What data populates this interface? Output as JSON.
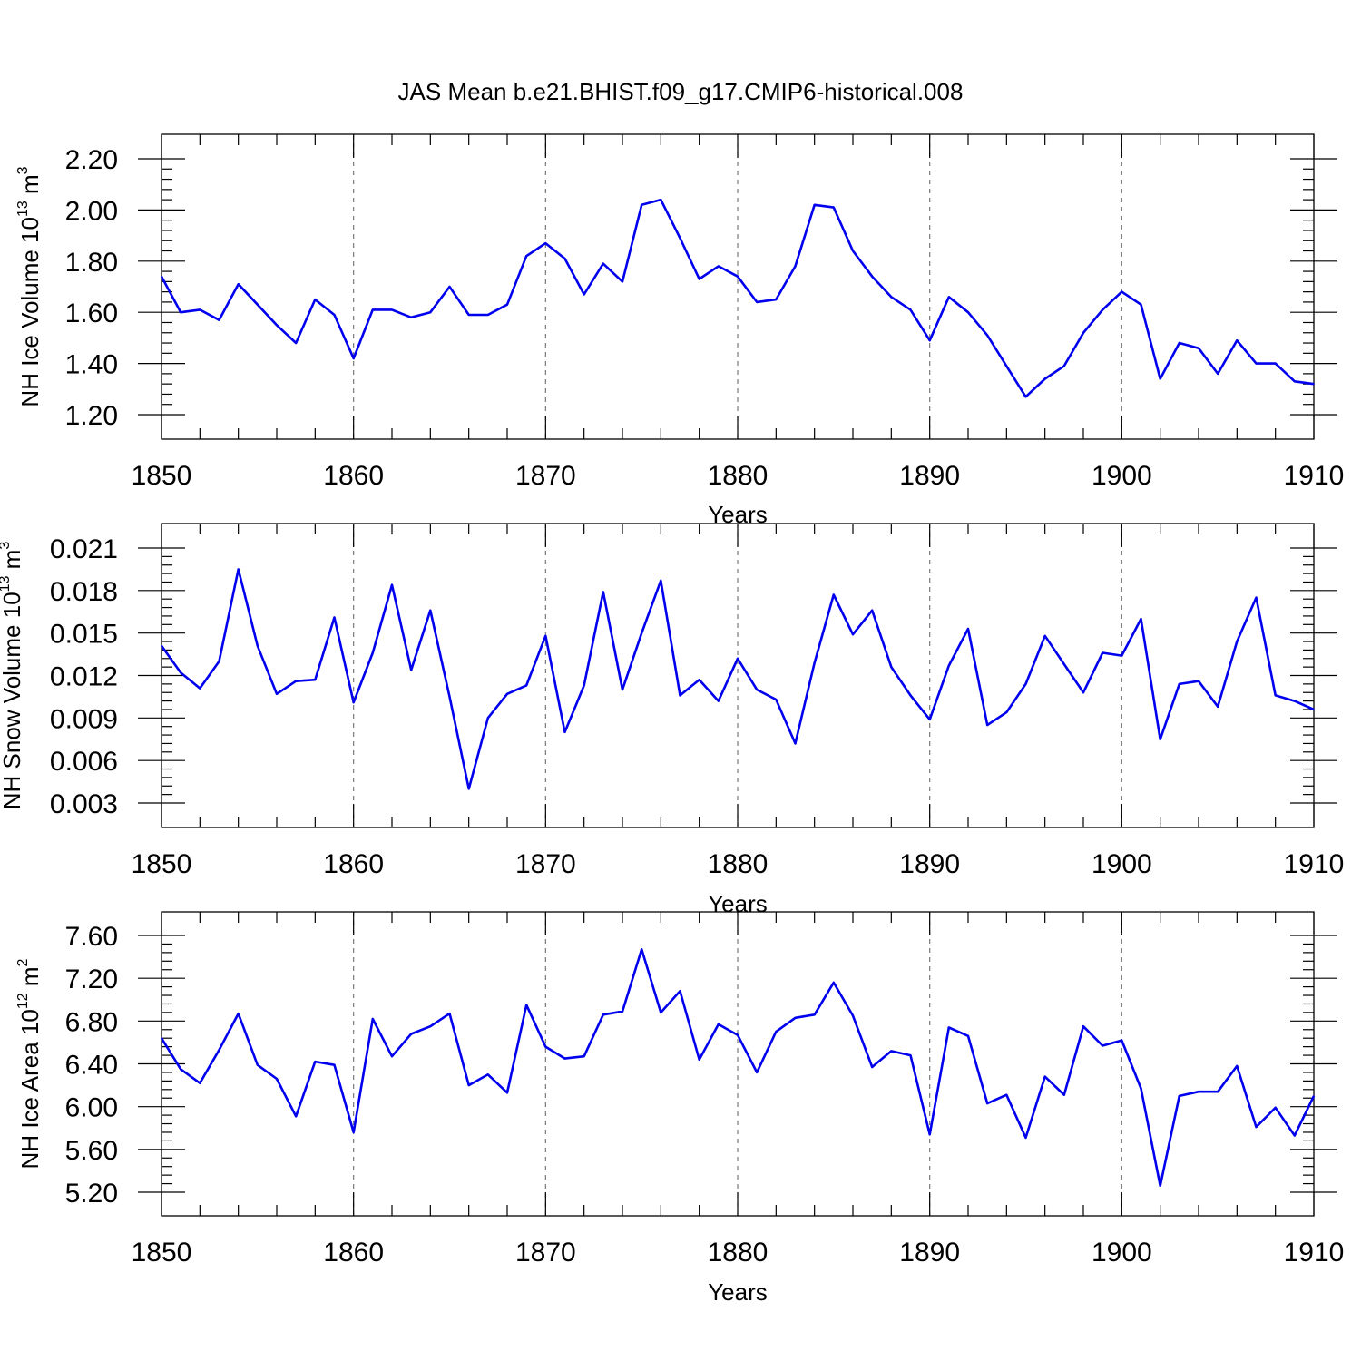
{
  "chart_data": [
    {
      "type": "line",
      "title": "JAS Mean b.e21.BHIST.f09_g17.CMIP6-historical.008",
      "xlabel": "Years",
      "ylabel": {
        "text": "NH Ice Volume 10",
        "exponent": "13",
        "unit": " m",
        "unit_exponent": "3"
      },
      "xlim": [
        1850,
        1910
      ],
      "ylim": [
        1.2,
        2.2
      ],
      "x_ticks": [
        1850,
        1860,
        1870,
        1880,
        1890,
        1900,
        1910
      ],
      "y_ticks": [
        "1.20",
        "1.40",
        "1.60",
        "1.80",
        "2.00",
        "2.20"
      ],
      "y_tick_values": [
        1.2,
        1.4,
        1.6,
        1.8,
        2.0,
        2.2
      ],
      "vertical_gridlines": [
        1860,
        1870,
        1880,
        1890,
        1900
      ],
      "line_color": "#0000ee",
      "x": [
        1850,
        1851,
        1852,
        1853,
        1854,
        1855,
        1856,
        1857,
        1858,
        1859,
        1860,
        1861,
        1862,
        1863,
        1864,
        1865,
        1866,
        1867,
        1868,
        1869,
        1870,
        1871,
        1872,
        1873,
        1874,
        1875,
        1876,
        1877,
        1878,
        1879,
        1880,
        1881,
        1882,
        1883,
        1884,
        1885,
        1886,
        1887,
        1888,
        1889,
        1890,
        1891,
        1892,
        1893,
        1894,
        1895,
        1896,
        1897,
        1898,
        1899,
        1900,
        1901,
        1902,
        1903,
        1904,
        1905,
        1906,
        1907,
        1908,
        1909,
        1910
      ],
      "values": [
        1.74,
        1.6,
        1.61,
        1.57,
        1.71,
        1.63,
        1.55,
        1.48,
        1.65,
        1.59,
        1.42,
        1.61,
        1.61,
        1.58,
        1.6,
        1.7,
        1.59,
        1.59,
        1.63,
        1.82,
        1.87,
        1.81,
        1.67,
        1.79,
        1.72,
        2.02,
        2.04,
        1.89,
        1.73,
        1.78,
        1.74,
        1.64,
        1.65,
        1.78,
        2.02,
        2.01,
        1.84,
        1.74,
        1.66,
        1.61,
        1.49,
        1.66,
        1.6,
        1.51,
        1.39,
        1.27,
        1.34,
        1.39,
        1.52,
        1.61,
        1.68,
        1.63,
        1.34,
        1.48,
        1.46,
        1.36,
        1.49,
        1.4,
        1.4,
        1.33,
        1.32
      ]
    },
    {
      "type": "line",
      "xlabel": "Years",
      "ylabel": {
        "text": "NH Snow Volume 10",
        "exponent": "13",
        "unit": " m",
        "unit_exponent": "3"
      },
      "xlim": [
        1850,
        1910
      ],
      "ylim": [
        0.003,
        0.021
      ],
      "x_ticks": [
        1850,
        1860,
        1870,
        1880,
        1890,
        1900,
        1910
      ],
      "y_ticks": [
        "0.003",
        "0.006",
        "0.009",
        "0.012",
        "0.015",
        "0.018",
        "0.021"
      ],
      "y_tick_values": [
        0.003,
        0.006,
        0.009,
        0.012,
        0.015,
        0.018,
        0.021
      ],
      "vertical_gridlines": [
        1860,
        1870,
        1880,
        1890,
        1900
      ],
      "line_color": "#0000ee",
      "x": [
        1850,
        1851,
        1852,
        1853,
        1854,
        1855,
        1856,
        1857,
        1858,
        1859,
        1860,
        1861,
        1862,
        1863,
        1864,
        1865,
        1866,
        1867,
        1868,
        1869,
        1870,
        1871,
        1872,
        1873,
        1874,
        1875,
        1876,
        1877,
        1878,
        1879,
        1880,
        1881,
        1882,
        1883,
        1884,
        1885,
        1886,
        1887,
        1888,
        1889,
        1890,
        1891,
        1892,
        1893,
        1894,
        1895,
        1896,
        1897,
        1898,
        1899,
        1900,
        1901,
        1902,
        1903,
        1904,
        1905,
        1906,
        1907,
        1908,
        1909,
        1910
      ],
      "values": [
        0.0141,
        0.0122,
        0.0111,
        0.013,
        0.0195,
        0.0141,
        0.0107,
        0.0116,
        0.0117,
        0.0161,
        0.0101,
        0.0136,
        0.0184,
        0.0124,
        0.0166,
        0.0105,
        0.004,
        0.009,
        0.0107,
        0.0113,
        0.0148,
        0.008,
        0.0113,
        0.0179,
        0.011,
        0.015,
        0.0187,
        0.0106,
        0.0117,
        0.0102,
        0.0132,
        0.011,
        0.0103,
        0.0072,
        0.0129,
        0.0177,
        0.0149,
        0.0166,
        0.0126,
        0.0106,
        0.0089,
        0.0127,
        0.0153,
        0.0085,
        0.0094,
        0.0114,
        0.0148,
        0.0128,
        0.0108,
        0.0136,
        0.0134,
        0.016,
        0.0075,
        0.0114,
        0.0116,
        0.0098,
        0.0144,
        0.0175,
        0.0106,
        0.0102,
        0.0096
      ]
    },
    {
      "type": "line",
      "xlabel": "Years",
      "ylabel": {
        "text": "NH Ice Area 10",
        "exponent": "12",
        "unit": " m",
        "unit_exponent": "2"
      },
      "xlim": [
        1850,
        1910
      ],
      "ylim": [
        5.2,
        7.6
      ],
      "x_ticks": [
        1850,
        1860,
        1870,
        1880,
        1890,
        1900,
        1910
      ],
      "y_ticks": [
        "5.20",
        "5.60",
        "6.00",
        "6.40",
        "6.80",
        "7.20",
        "7.60"
      ],
      "y_tick_values": [
        5.2,
        5.6,
        6.0,
        6.4,
        6.8,
        7.2,
        7.6
      ],
      "vertical_gridlines": [
        1860,
        1870,
        1880,
        1890,
        1900
      ],
      "line_color": "#0000ee",
      "x": [
        1850,
        1851,
        1852,
        1853,
        1854,
        1855,
        1856,
        1857,
        1858,
        1859,
        1860,
        1861,
        1862,
        1863,
        1864,
        1865,
        1866,
        1867,
        1868,
        1869,
        1870,
        1871,
        1872,
        1873,
        1874,
        1875,
        1876,
        1877,
        1878,
        1879,
        1880,
        1881,
        1882,
        1883,
        1884,
        1885,
        1886,
        1887,
        1888,
        1889,
        1890,
        1891,
        1892,
        1893,
        1894,
        1895,
        1896,
        1897,
        1898,
        1899,
        1900,
        1901,
        1902,
        1903,
        1904,
        1905,
        1906,
        1907,
        1908,
        1909,
        1910
      ],
      "values": [
        6.64,
        6.35,
        6.22,
        6.53,
        6.87,
        6.39,
        6.26,
        5.91,
        6.42,
        6.39,
        5.76,
        6.82,
        6.47,
        6.68,
        6.75,
        6.87,
        6.2,
        6.3,
        6.13,
        6.95,
        6.56,
        6.45,
        6.47,
        6.86,
        6.89,
        7.47,
        6.88,
        7.08,
        6.44,
        6.77,
        6.67,
        6.32,
        6.7,
        6.83,
        6.86,
        7.16,
        6.85,
        6.37,
        6.52,
        6.48,
        5.74,
        6.74,
        6.66,
        6.03,
        6.11,
        5.71,
        6.28,
        6.11,
        6.75,
        6.57,
        6.62,
        6.17,
        5.26,
        6.1,
        6.14,
        6.14,
        6.38,
        5.81,
        5.99,
        5.73,
        6.1
      ]
    }
  ]
}
